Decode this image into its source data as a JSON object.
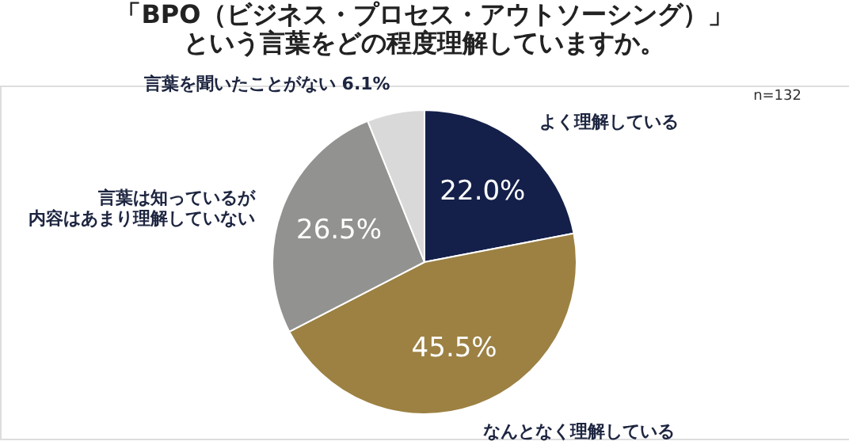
{
  "chart_data": {
    "type": "pie",
    "title": "「BPO（ビジネス・プロセス・アウトソーシング）」という言葉をどの程度理解していますか。",
    "categories": [
      "よく理解している",
      "なんとなく理解している",
      "言葉は知っているが内容はあまり理解していない",
      "言葉を聞いたことがない"
    ],
    "values": [
      22.0,
      45.5,
      26.5,
      6.1
    ],
    "value_labels": [
      "22.0%",
      "45.5%",
      "26.5%",
      "6.1%"
    ],
    "colors": [
      "#14204a",
      "#9c8143",
      "#929390",
      "#d9d9d9"
    ],
    "annotations": [
      "n=132"
    ],
    "legend": false
  }
}
